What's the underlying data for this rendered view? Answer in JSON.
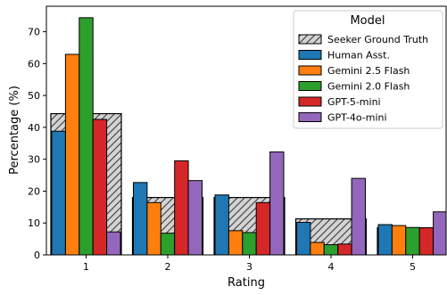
{
  "chart_data": {
    "type": "bar",
    "title": "",
    "xlabel": "Rating",
    "ylabel": "Percentage (%)",
    "categories": [
      "1",
      "2",
      "3",
      "4",
      "5"
    ],
    "ylim": [
      0,
      78
    ],
    "yticks": [
      0,
      10,
      20,
      30,
      40,
      50,
      60,
      70
    ],
    "grid": false,
    "legend": {
      "title": "Model",
      "placement": "top-right"
    },
    "ground_truth": {
      "name": "Seeker Ground Truth",
      "values": [
        44.3,
        18.0,
        18.0,
        11.3,
        8.5
      ],
      "fill": "#d3d3d3",
      "hatch": "diagonal"
    },
    "series": [
      {
        "name": "Human Asst.",
        "color": "#1f77b4",
        "values": [
          38.8,
          22.7,
          18.8,
          10.2,
          9.5
        ]
      },
      {
        "name": "Gemini 2.5 Flash",
        "color": "#ff7f0e",
        "values": [
          62.9,
          16.4,
          7.6,
          3.9,
          9.2
        ]
      },
      {
        "name": "Gemini 2.0 Flash",
        "color": "#2ca02c",
        "values": [
          74.4,
          6.8,
          7.0,
          3.2,
          8.6
        ]
      },
      {
        "name": "GPT-5-mini",
        "color": "#d62728",
        "values": [
          42.5,
          29.5,
          16.4,
          3.4,
          8.5
        ]
      },
      {
        "name": "GPT-4o-mini",
        "color": "#9467bd",
        "values": [
          7.2,
          23.3,
          32.3,
          24.0,
          13.5
        ]
      }
    ]
  }
}
